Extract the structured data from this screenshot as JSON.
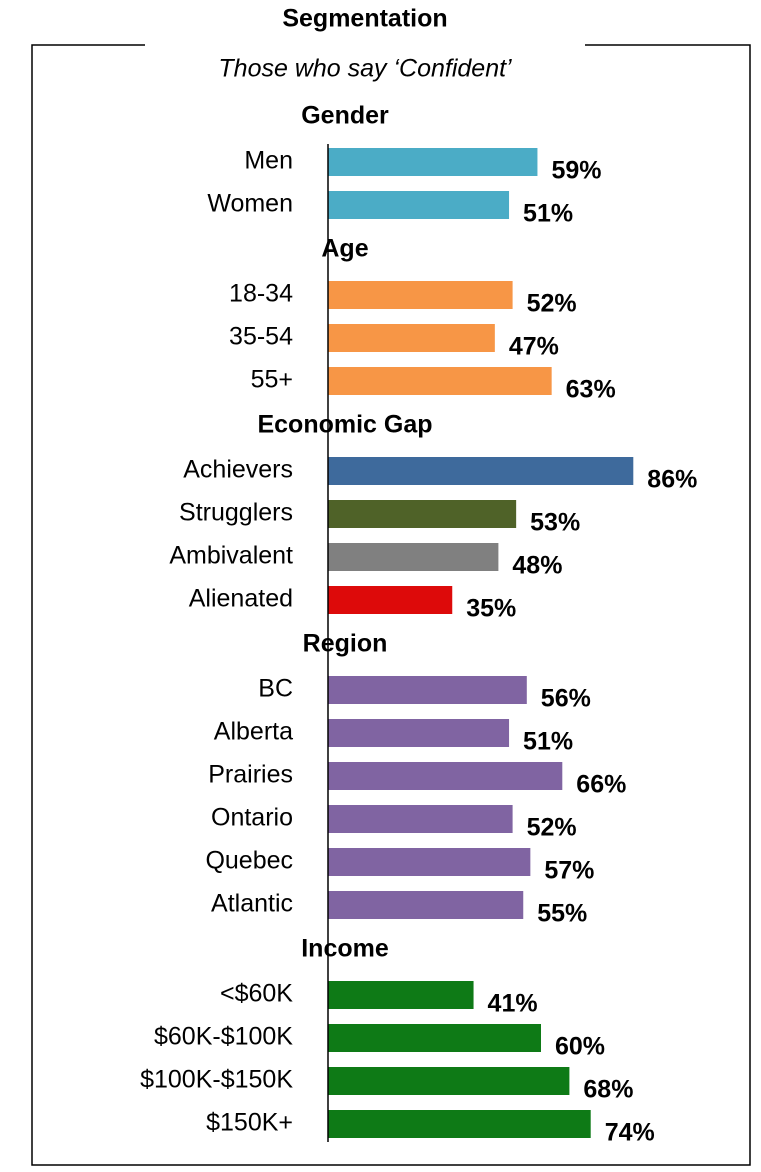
{
  "chart_data": {
    "type": "bar",
    "orientation": "horizontal",
    "title": "Segmentation",
    "subtitle": "Those who say ‘Confident’",
    "xlim": [
      0,
      100
    ],
    "groups": [
      {
        "name": "Gender",
        "categories": [
          "Men",
          "Women"
        ],
        "values": [
          59,
          51
        ],
        "value_labels": [
          "59%",
          "51%"
        ],
        "colors": [
          "#4bacc6",
          "#4bacc6"
        ]
      },
      {
        "name": "Age",
        "categories": [
          "18-34",
          "35-54",
          "55+"
        ],
        "values": [
          52,
          47,
          63
        ],
        "value_labels": [
          "52%",
          "47%",
          "63%"
        ],
        "colors": [
          "#f79646",
          "#f79646",
          "#f79646"
        ]
      },
      {
        "name": "Economic Gap",
        "categories": [
          "Achievers",
          "Strugglers",
          "Ambivalent",
          "Alienated"
        ],
        "values": [
          86,
          53,
          48,
          35
        ],
        "value_labels": [
          "86%",
          "53%",
          "48%",
          "35%"
        ],
        "colors": [
          "#3e6a9c",
          "#4f6228",
          "#808080",
          "#dd0a0a"
        ]
      },
      {
        "name": "Region",
        "categories": [
          "BC",
          "Alberta",
          "Prairies",
          "Ontario",
          "Quebec",
          "Atlantic"
        ],
        "values": [
          56,
          51,
          66,
          52,
          57,
          55
        ],
        "value_labels": [
          "56%",
          "51%",
          "66%",
          "52%",
          "57%",
          "55%"
        ],
        "colors": [
          "#8064a2",
          "#8064a2",
          "#8064a2",
          "#8064a2",
          "#8064a2",
          "#8064a2"
        ]
      },
      {
        "name": "Income",
        "categories": [
          "<$60K",
          "$60K-$100K",
          "$100K-$150K",
          "$150K+"
        ],
        "values": [
          41,
          60,
          68,
          74
        ],
        "value_labels": [
          "41%",
          "60%",
          "68%",
          "74%"
        ],
        "colors": [
          "#0e7a16",
          "#0e7a16",
          "#0e7a16",
          "#0e7a16"
        ]
      }
    ]
  }
}
